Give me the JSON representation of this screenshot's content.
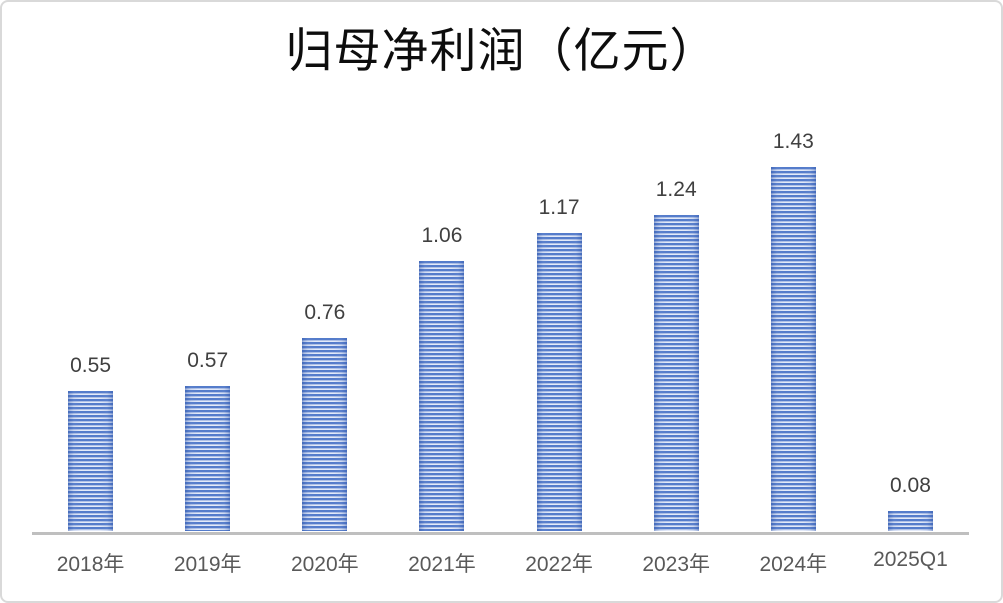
{
  "page": {
    "background_color": "#ffffff",
    "border_color": "#d9d9d9"
  },
  "chart_data": {
    "type": "bar",
    "title": "归母净利润（亿元）",
    "categories": [
      "2018年",
      "2019年",
      "2020年",
      "2021年",
      "2022年",
      "2023年",
      "2024年",
      "2025Q1"
    ],
    "values": [
      0.55,
      0.57,
      0.76,
      1.06,
      1.17,
      1.24,
      1.43,
      0.08
    ],
    "data_labels": [
      "0.55",
      "0.57",
      "0.76",
      "1.06",
      "1.17",
      "1.24",
      "1.43",
      "0.08"
    ],
    "xlabel": "",
    "ylabel": "",
    "ylim": [
      0,
      1.55
    ],
    "grid": false,
    "legend": "none",
    "y_axis_visible": false,
    "data_labels_position": "above-bar",
    "bar_pattern": "horizontal-stripes",
    "bar_stripe_dark_color": "#4d75c6",
    "bar_stripe_light_color": "#dce4f6",
    "axis_line_color": "#bfbfbf",
    "title_color": "#0d0d0d",
    "data_label_color": "#404040",
    "tick_label_color": "#595959"
  }
}
